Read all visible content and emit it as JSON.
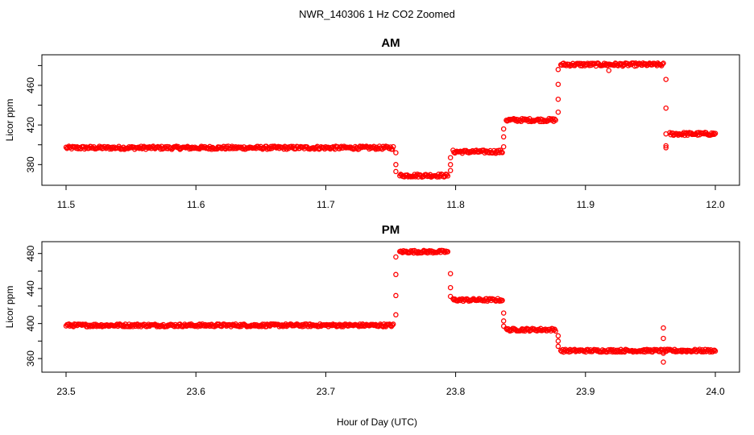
{
  "figure": {
    "title": "NWR_140306  1 Hz CO2 Zoomed",
    "xlabel": "Hour of Day (UTC)"
  },
  "style": {
    "point_color": "#ff0000",
    "axis_color": "#000000"
  },
  "chart_data": [
    {
      "type": "scatter",
      "title": "AM",
      "ylabel": "Licor ppm",
      "xlabel": "",
      "xlim": [
        11.5,
        12.0
      ],
      "ylim": [
        364,
        486
      ],
      "xticks": [
        "11.5",
        "11.6",
        "11.7",
        "11.8",
        "11.9",
        "12.0"
      ],
      "yticks": [
        "380",
        "420",
        "460"
      ],
      "grid": false,
      "series": [
        {
          "values_description_free": true,
          "segments": [
            {
              "x_start": 11.5,
              "x_end": 11.752,
              "y": 397
            },
            {
              "x_start": 11.757,
              "x_end": 11.794,
              "y": 369
            },
            {
              "x_start": 11.798,
              "x_end": 11.836,
              "y": 393
            },
            {
              "x_start": 11.839,
              "x_end": 11.877,
              "y": 425
            },
            {
              "x_start": 11.881,
              "x_end": 11.96,
              "y": 481
            },
            {
              "x_start": 11.965,
              "x_end": 12.0,
              "y": 411
            }
          ],
          "transitions": [
            {
              "x": 11.754,
              "y": [
                392,
                380,
                373
              ]
            },
            {
              "x": 11.796,
              "y": [
                374,
                380,
                387
              ]
            },
            {
              "x": 11.837,
              "y": [
                398,
                408,
                416
              ]
            },
            {
              "x": 11.879,
              "y": [
                433,
                446,
                461,
                476
              ]
            },
            {
              "x": 11.962,
              "y": [
                466,
                437,
                411,
                399,
                397
              ]
            }
          ],
          "outliers": [
            {
              "x": 11.918,
              "y": 475
            }
          ]
        }
      ]
    },
    {
      "type": "scatter",
      "title": "PM",
      "ylabel": "Licor ppm",
      "xlabel": "Hour of Day (UTC)",
      "xlim": [
        23.5,
        24.0
      ],
      "ylim": [
        350,
        488
      ],
      "xticks": [
        "23.5",
        "23.6",
        "23.7",
        "23.8",
        "23.9",
        "24.0"
      ],
      "yticks": [
        "360",
        "400",
        "440",
        "480"
      ],
      "grid": false,
      "series": [
        {
          "segments": [
            {
              "x_start": 23.5,
              "x_end": 23.752,
              "y": 398
            },
            {
              "x_start": 23.757,
              "x_end": 23.794,
              "y": 482
            },
            {
              "x_start": 23.798,
              "x_end": 23.836,
              "y": 427
            },
            {
              "x_start": 23.839,
              "x_end": 23.877,
              "y": 393
            },
            {
              "x_start": 23.881,
              "x_end": 24.0,
              "y": 369
            }
          ],
          "transitions": [
            {
              "x": 23.754,
              "y": [
                410,
                432,
                456,
                476
              ]
            },
            {
              "x": 23.796,
              "y": [
                457,
                441,
                431
              ]
            },
            {
              "x": 23.837,
              "y": [
                412,
                403,
                397
              ]
            },
            {
              "x": 23.879,
              "y": [
                386,
                380,
                374
              ]
            },
            {
              "x": 23.96,
              "y": [
                395,
                383,
                366,
                356
              ]
            }
          ],
          "outliers": []
        }
      ]
    }
  ]
}
